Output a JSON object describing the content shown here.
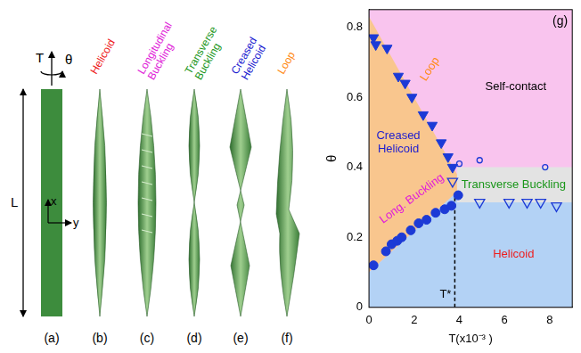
{
  "ribbons": {
    "panel_a": {
      "label": "(a)",
      "tension": "T",
      "twist": "θ",
      "length": "L",
      "x_axis": "x",
      "y_axis": "y"
    },
    "shapes": [
      {
        "label": "(b)",
        "title": "Helicoid",
        "color": "#ee1c1c"
      },
      {
        "label": "(c)",
        "title": "Longitudinal Buckling",
        "color": "#e020d8"
      },
      {
        "label": "(d)",
        "title": "Transverse Buckling",
        "color": "#1a961a"
      },
      {
        "label": "(e)",
        "title": "Creased Helicoid",
        "color": "#1c1cd0"
      },
      {
        "label": "(f)",
        "title": "Loop",
        "color": "#ff8a14"
      }
    ]
  },
  "chart_data": {
    "type": "scatter",
    "panel_label": "(g)",
    "x_label": "T(x10⁻³ )",
    "y_label": "θ",
    "xlim": [
      0,
      9
    ],
    "xticks": [
      0,
      2,
      4,
      6,
      8
    ],
    "ylim": [
      0,
      0.85
    ],
    "yticks": [
      0,
      0.2,
      0.4,
      0.6,
      0.8
    ],
    "grid": false,
    "series": [
      {
        "marker": "circle",
        "color": "#1c3ad6",
        "x": [
          0.2,
          0.75,
          1.0,
          1.25,
          1.45,
          1.85,
          2.2,
          2.55,
          2.95,
          3.35,
          3.65,
          3.95
        ],
        "values": [
          0.12,
          0.16,
          0.18,
          0.19,
          0.2,
          0.22,
          0.24,
          0.25,
          0.27,
          0.28,
          0.29,
          0.32
        ]
      },
      {
        "marker": "triangle-down",
        "color": "#1c3ad6",
        "x": [
          0.2,
          0.3,
          0.8,
          1.3,
          1.6,
          1.9,
          2.4,
          2.8,
          3.2,
          3.5,
          3.7
        ],
        "values": [
          0.77,
          0.75,
          0.74,
          0.66,
          0.64,
          0.6,
          0.55,
          0.52,
          0.47,
          0.43,
          0.4
        ]
      },
      {
        "marker": "triangle-down-open",
        "color": "#1c3ad6",
        "x": [
          3.7,
          4.9,
          6.2,
          7.0,
          7.6,
          8.3
        ],
        "values": [
          0.36,
          0.3,
          0.3,
          0.3,
          0.3,
          0.29
        ]
      },
      {
        "marker": "circle-open",
        "color": "#1c3ad6",
        "x": [
          4.0,
          4.9,
          7.8
        ],
        "values": [
          0.41,
          0.42,
          0.4
        ]
      }
    ],
    "regions": [
      {
        "name": "Self-contact",
        "color": "#f9c4ee",
        "polygon": [
          [
            0,
            0
          ],
          [
            9,
            0
          ],
          [
            9,
            0.85
          ],
          [
            0,
            0.85
          ]
        ]
      },
      {
        "name": "Creased Helicoid",
        "color": "#f9c68e",
        "polygon": [
          [
            0,
            0.1
          ],
          [
            3.9,
            0.33
          ],
          [
            3.9,
            0.38
          ],
          [
            0,
            0.83
          ]
        ]
      },
      {
        "name": "Helicoid",
        "color": "#b3d2f5",
        "polygon": [
          [
            0,
            0
          ],
          [
            9,
            0
          ],
          [
            9,
            0.3
          ],
          [
            3.9,
            0.3
          ],
          [
            3.9,
            0.33
          ],
          [
            0,
            0.1
          ]
        ]
      },
      {
        "name": "Transverse Buckling",
        "color": "#e3e3e3",
        "polygon": [
          [
            3.9,
            0.3
          ],
          [
            9,
            0.3
          ],
          [
            9,
            0.4
          ],
          [
            3.9,
            0.4
          ]
        ]
      }
    ],
    "annotations": [
      {
        "text": "Self-contact",
        "color": "#000000"
      },
      {
        "text": "Creased Helicoid",
        "color": "#1c1cd0"
      },
      {
        "text": "Loop",
        "color": "#ff8a14"
      },
      {
        "text": "Long. Buckling",
        "color": "#e020d8"
      },
      {
        "text": "Transverse Buckling",
        "color": "#1a961a"
      },
      {
        "text": "Helicoid",
        "color": "#ee1c1c"
      }
    ],
    "reference_line": {
      "x": 3.8,
      "y_top": 0.32,
      "label": "T*"
    }
  }
}
